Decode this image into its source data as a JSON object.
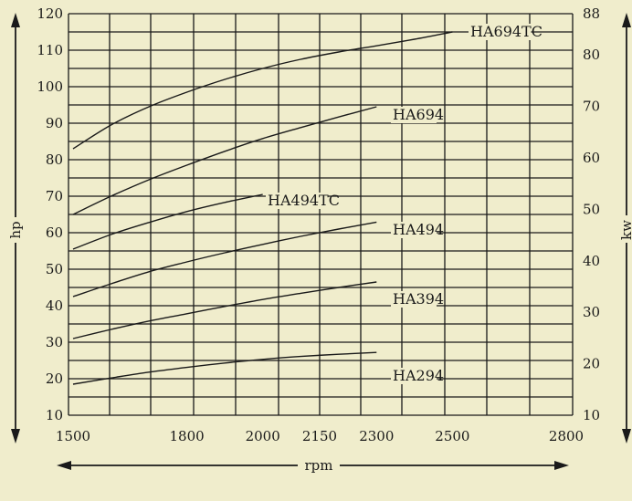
{
  "colors": {
    "background": "#f0edcc",
    "ink": "#1a1a1a"
  },
  "chart_data": {
    "type": "line",
    "xlabel": "rpm",
    "ylabel_left": "hp",
    "ylabel_right": "kw",
    "xlim": [
      1500,
      2800
    ],
    "ylim": [
      10,
      120
    ],
    "y2lim": [
      10,
      88
    ],
    "x_ticks": [
      "1500",
      "1800",
      "2000",
      "2150",
      "2300",
      "2500",
      "2800"
    ],
    "y_ticks": [
      "10",
      "20",
      "30",
      "40",
      "50",
      "60",
      "70",
      "80",
      "90",
      "100",
      "110",
      "120"
    ],
    "y2_ticks": [
      "10",
      "20",
      "30",
      "40",
      "50",
      "60",
      "70",
      "80",
      "88"
    ],
    "grid": true,
    "series": [
      {
        "name": "HA694TC",
        "x": [
          1500,
          1600,
          1700,
          1800,
          1900,
          2000,
          2100,
          2200,
          2300,
          2400,
          2500
        ],
        "y": [
          83,
          89.5,
          94.5,
          98.5,
          102,
          105,
          107.5,
          109.5,
          111.2,
          113,
          115
        ]
      },
      {
        "name": "HA694",
        "x": [
          1500,
          1600,
          1700,
          1800,
          1900,
          2000,
          2100,
          2200,
          2300
        ],
        "y": [
          65,
          70,
          74.5,
          78.5,
          82.3,
          85.8,
          88.8,
          91.7,
          94.5
        ]
      },
      {
        "name": "HA494TC",
        "x": [
          1500,
          1600,
          1700,
          1800,
          1900,
          2000
        ],
        "y": [
          55.5,
          59.5,
          62.8,
          65.8,
          68.3,
          70.5
        ]
      },
      {
        "name": "HA494",
        "x": [
          1500,
          1600,
          1700,
          1800,
          1900,
          2000,
          2100,
          2200,
          2300
        ],
        "y": [
          42.5,
          46,
          49.3,
          52,
          54.5,
          56.8,
          59,
          61,
          62.9
        ]
      },
      {
        "name": "HA394",
        "x": [
          1500,
          1600,
          1700,
          1800,
          1900,
          2000,
          2100,
          2200,
          2300
        ],
        "y": [
          31,
          33.5,
          35.8,
          37.8,
          39.8,
          41.7,
          43.4,
          45,
          46.5
        ]
      },
      {
        "name": "HA294",
        "x": [
          1500,
          1600,
          1700,
          1800,
          1900,
          2000,
          2100,
          2200,
          2300
        ],
        "y": [
          18.5,
          20.2,
          21.8,
          23.1,
          24.3,
          25.3,
          26.1,
          26.7,
          27.2
        ]
      }
    ]
  }
}
